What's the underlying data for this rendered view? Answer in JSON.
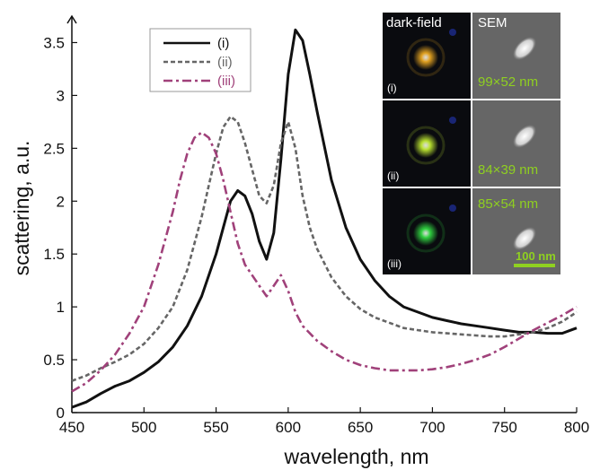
{
  "chart_data": {
    "type": "line",
    "xlabel": "wavelength, nm",
    "ylabel": "scattering, a.u.",
    "xlim": [
      450,
      800
    ],
    "ylim": [
      0,
      3.75
    ],
    "x_ticks": [
      450,
      500,
      550,
      600,
      650,
      700,
      750,
      800
    ],
    "y_ticks": [
      0,
      0.5,
      1,
      1.5,
      2,
      2.5,
      3,
      3.5
    ],
    "y_tick_labels": [
      "0",
      "0.5",
      "1",
      "1.5",
      "2",
      "2.5",
      "3",
      "3.5"
    ],
    "legend_placement": "top-center",
    "grid": false,
    "series": [
      {
        "name": "(i)",
        "color": "#111111",
        "style": "solid",
        "x": [
          450,
          460,
          470,
          480,
          490,
          500,
          510,
          520,
          530,
          540,
          550,
          555,
          560,
          565,
          570,
          575,
          580,
          585,
          590,
          595,
          600,
          605,
          610,
          615,
          620,
          630,
          640,
          650,
          660,
          670,
          680,
          690,
          700,
          710,
          720,
          730,
          740,
          750,
          760,
          770,
          780,
          790,
          800
        ],
        "y": [
          0.05,
          0.1,
          0.18,
          0.25,
          0.3,
          0.38,
          0.48,
          0.62,
          0.82,
          1.1,
          1.5,
          1.75,
          2.0,
          2.1,
          2.05,
          1.88,
          1.62,
          1.45,
          1.7,
          2.4,
          3.2,
          3.62,
          3.52,
          3.2,
          2.85,
          2.2,
          1.75,
          1.45,
          1.25,
          1.1,
          1.0,
          0.95,
          0.9,
          0.87,
          0.84,
          0.82,
          0.8,
          0.78,
          0.76,
          0.76,
          0.75,
          0.75,
          0.8
        ]
      },
      {
        "name": "(ii)",
        "color": "#666666",
        "style": "dashed",
        "x": [
          450,
          460,
          470,
          480,
          490,
          500,
          510,
          520,
          530,
          540,
          545,
          550,
          555,
          560,
          565,
          570,
          575,
          580,
          585,
          590,
          595,
          600,
          605,
          610,
          615,
          620,
          630,
          640,
          650,
          660,
          670,
          680,
          690,
          700,
          710,
          720,
          730,
          740,
          750,
          760,
          770,
          780,
          790,
          800
        ],
        "y": [
          0.3,
          0.35,
          0.42,
          0.48,
          0.55,
          0.65,
          0.8,
          1.0,
          1.35,
          1.85,
          2.15,
          2.45,
          2.7,
          2.8,
          2.75,
          2.55,
          2.3,
          2.05,
          1.98,
          2.15,
          2.55,
          2.75,
          2.5,
          2.05,
          1.75,
          1.55,
          1.28,
          1.1,
          0.98,
          0.9,
          0.85,
          0.8,
          0.78,
          0.76,
          0.75,
          0.74,
          0.73,
          0.72,
          0.72,
          0.74,
          0.76,
          0.8,
          0.86,
          0.95
        ]
      },
      {
        "name": "(iii)",
        "color": "#a0417a",
        "style": "dash-dot",
        "x": [
          450,
          460,
          470,
          480,
          490,
          500,
          510,
          520,
          525,
          530,
          535,
          540,
          545,
          550,
          555,
          560,
          565,
          570,
          575,
          580,
          585,
          590,
          595,
          600,
          605,
          610,
          620,
          630,
          640,
          650,
          660,
          670,
          680,
          690,
          700,
          710,
          720,
          730,
          740,
          750,
          760,
          770,
          780,
          790,
          800
        ],
        "y": [
          0.2,
          0.28,
          0.4,
          0.55,
          0.75,
          1.0,
          1.4,
          1.9,
          2.2,
          2.45,
          2.6,
          2.65,
          2.6,
          2.45,
          2.2,
          1.9,
          1.6,
          1.4,
          1.3,
          1.2,
          1.1,
          1.2,
          1.3,
          1.15,
          0.95,
          0.82,
          0.68,
          0.58,
          0.5,
          0.45,
          0.42,
          0.4,
          0.4,
          0.4,
          0.41,
          0.43,
          0.46,
          0.5,
          0.55,
          0.62,
          0.7,
          0.78,
          0.85,
          0.92,
          1.0
        ]
      }
    ]
  },
  "inset": {
    "column_headers": [
      "dark-field",
      "SEM"
    ],
    "rows": [
      {
        "label": "(i)",
        "size": "99×52 nm",
        "spot_color": "#e0a020"
      },
      {
        "label": "(ii)",
        "size": "84×39 nm",
        "spot_color": "#b8e030"
      },
      {
        "label": "(iii)",
        "size": "85×54 nm",
        "spot_color": "#30d040"
      }
    ],
    "scale_bar": "100 nm",
    "label_color": "#8fd020"
  }
}
